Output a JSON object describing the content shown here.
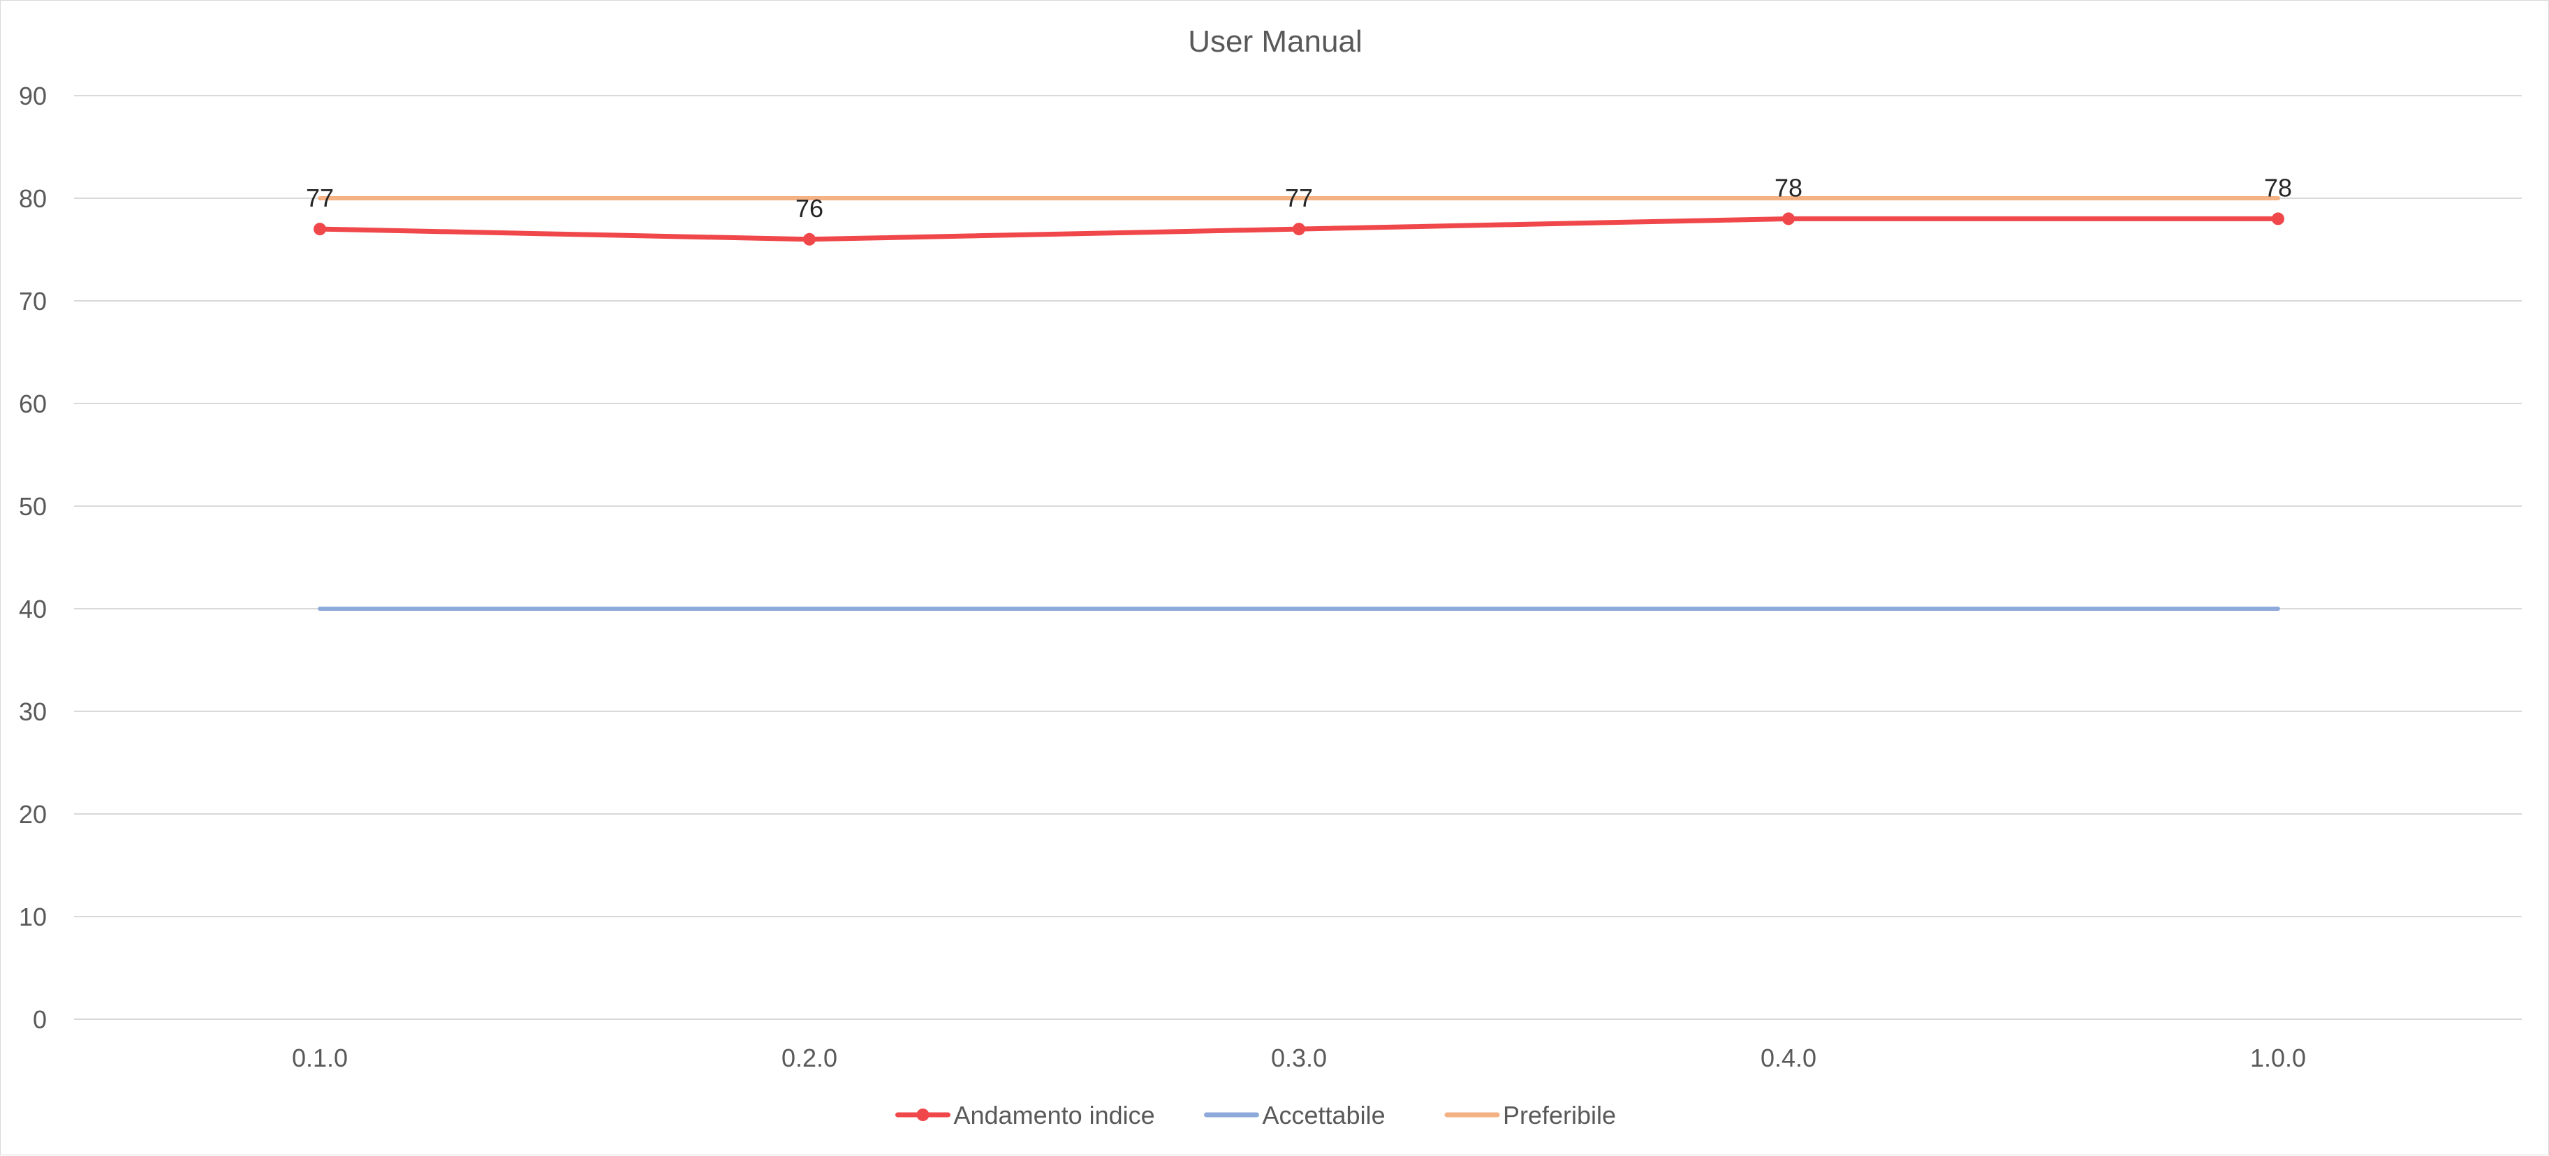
{
  "chart_data": {
    "type": "line",
    "title": "User Manual",
    "xlabel": "",
    "ylabel": "",
    "categories": [
      "0.1.0",
      "0.2.0",
      "0.3.0",
      "0.4.0",
      "1.0.0"
    ],
    "ylim": [
      0,
      90
    ],
    "yticks": [
      0,
      10,
      20,
      30,
      40,
      50,
      60,
      70,
      80,
      90
    ],
    "grid": true,
    "legend_position": "bottom",
    "series": [
      {
        "name": "Andamento indice",
        "values": [
          77,
          76,
          77,
          78,
          78
        ],
        "color": "#f0474a",
        "markers": true,
        "data_labels": [
          "77",
          "76",
          "77",
          "78",
          "78"
        ]
      },
      {
        "name": "Accettabile",
        "values": [
          40,
          40,
          40,
          40,
          40
        ],
        "color": "#8eaadb",
        "markers": false
      },
      {
        "name": "Preferibile",
        "values": [
          80,
          80,
          80,
          80,
          80
        ],
        "color": "#f4b183",
        "markers": false
      }
    ]
  }
}
